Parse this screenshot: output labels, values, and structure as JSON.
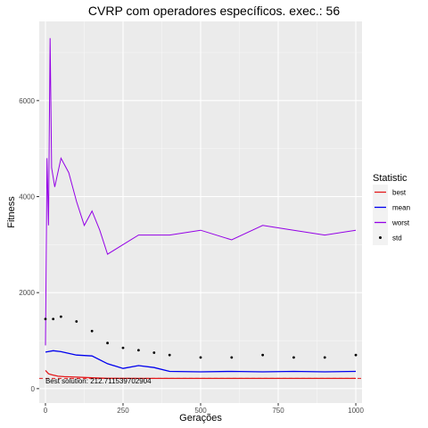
{
  "chart_data": {
    "type": "line",
    "title": "CVRP com operadores específicos. exec.: 56",
    "xlabel": "Gerações",
    "ylabel": "Fitness",
    "xlim": [
      -20,
      1020
    ],
    "ylim": [
      -300,
      7650
    ],
    "x_ticks": [
      0,
      250,
      500,
      750,
      1000
    ],
    "y_ticks": [
      0,
      2000,
      4000,
      6000
    ],
    "grid": true,
    "legend": {
      "title": "Statistic",
      "placement": "right",
      "entries": [
        {
          "name": "best",
          "color": "#e31a1c",
          "kind": "line"
        },
        {
          "name": "mean",
          "color": "#0000ee",
          "kind": "line"
        },
        {
          "name": "worst",
          "color": "#9400e6",
          "kind": "line"
        },
        {
          "name": "std",
          "color": "#000000",
          "kind": "point"
        }
      ]
    },
    "annotation": {
      "text": "Best solution: 212.711539702904",
      "x": 0,
      "y": 110
    },
    "reference_line": {
      "y": 212.71,
      "style": "dashed",
      "color": "#e31a1c"
    },
    "series": [
      {
        "name": "best",
        "x": [
          0,
          10,
          20,
          40,
          60,
          100,
          150,
          200,
          300,
          500,
          750,
          1000
        ],
        "y": [
          380,
          310,
          290,
          260,
          250,
          240,
          225,
          215,
          213,
          213,
          213,
          213
        ]
      },
      {
        "name": "mean",
        "x": [
          0,
          25,
          50,
          100,
          150,
          200,
          250,
          300,
          350,
          400,
          500,
          600,
          700,
          800,
          900,
          1000
        ],
        "y": [
          760,
          790,
          770,
          700,
          680,
          520,
          420,
          480,
          440,
          360,
          350,
          360,
          350,
          360,
          350,
          360
        ]
      },
      {
        "name": "worst",
        "x": [
          0,
          5,
          10,
          15,
          20,
          30,
          50,
          75,
          100,
          125,
          150,
          175,
          200,
          250,
          300,
          400,
          500,
          600,
          700,
          800,
          900,
          1000
        ],
        "y": [
          900,
          4800,
          3400,
          7300,
          4600,
          4200,
          4800,
          4500,
          3900,
          3400,
          3700,
          3300,
          2800,
          3000,
          3200,
          3200,
          3300,
          3100,
          3400,
          3300,
          3200,
          3300
        ]
      },
      {
        "name": "std",
        "x": [
          0,
          25,
          50,
          100,
          150,
          200,
          250,
          300,
          350,
          400,
          500,
          600,
          700,
          800,
          900,
          1000
        ],
        "y": [
          1450,
          1450,
          1500,
          1400,
          1200,
          950,
          850,
          800,
          750,
          700,
          650,
          650,
          700,
          650,
          650,
          700
        ]
      }
    ]
  }
}
